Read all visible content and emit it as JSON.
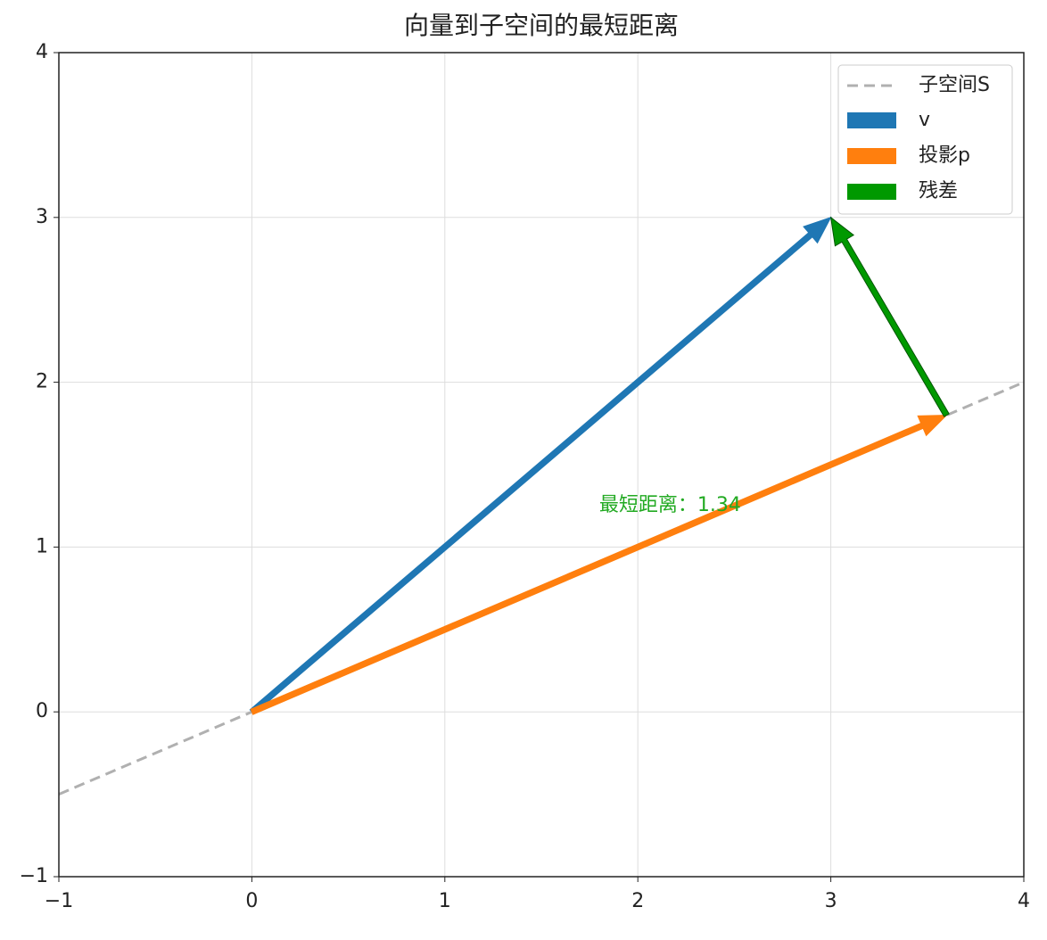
{
  "chart_data": {
    "type": "quiver",
    "title": "向量到子空间的最短距离",
    "xlim": [
      -1,
      4
    ],
    "ylim": [
      -1,
      4
    ],
    "xticks": [
      {
        "value": -1,
        "label": "−1"
      },
      0,
      1,
      2,
      3,
      4
    ],
    "yticks": [
      {
        "value": -1,
        "label": "−1"
      },
      0,
      1,
      2,
      3,
      4
    ],
    "grid": true,
    "legend": "upper right",
    "lines": [
      {
        "name": "子空间S",
        "color": "#b0b0b0",
        "dashed": true,
        "x": [
          -1,
          4
        ],
        "y": [
          -0.5,
          2
        ]
      }
    ],
    "vectors": [
      {
        "name": "v",
        "color": "#1f77b4",
        "x0": 0,
        "y0": 0,
        "dx": 3,
        "dy": 3
      },
      {
        "name": "投影p",
        "color": "#ff7f0e",
        "x0": 0,
        "y0": 0,
        "dx": 3.6,
        "dy": 1.8
      },
      {
        "name": "残差",
        "color": "#009900",
        "x0": 3.6,
        "y0": 1.8,
        "dx": -0.6,
        "dy": 1.2
      }
    ],
    "annotation": {
      "text": "最短距离：1.34",
      "color": "#22aa22",
      "x": 1.8,
      "y": 1.25
    }
  }
}
